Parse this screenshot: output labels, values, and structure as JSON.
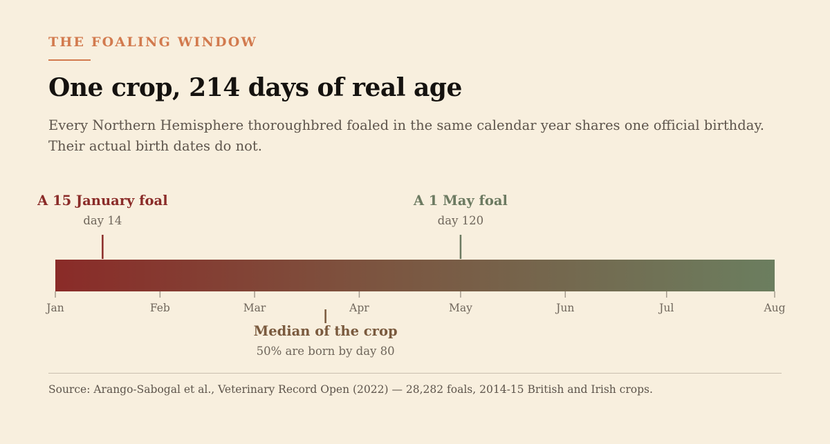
{
  "header": {
    "kicker": "THE FOALING WINDOW",
    "title": "One crop, 214 days of real age",
    "subtitle": "Every Northern Hemisphere thoroughbred foaled in the same calendar year shares one official birthday. Their actual birth dates do not."
  },
  "chart_data": {
    "type": "timeline",
    "axis": {
      "start_day": 0,
      "end_day": 213,
      "ticks": [
        {
          "label": "Jan",
          "day": 0
        },
        {
          "label": "Feb",
          "day": 31
        },
        {
          "label": "Mar",
          "day": 59
        },
        {
          "label": "Apr",
          "day": 90
        },
        {
          "label": "May",
          "day": 120
        },
        {
          "label": "Jun",
          "day": 151
        },
        {
          "label": "Jul",
          "day": 181
        },
        {
          "label": "Aug",
          "day": 213
        }
      ]
    },
    "gradient": {
      "start_color": "#8a2b28",
      "mid_color": "#7c5540",
      "end_color": "#6b7e5f"
    },
    "markers": [
      {
        "id": "jan-foal",
        "day": 14,
        "label": "A 15 January foal",
        "sublabel": "day 14",
        "position": "above",
        "color": "#8a2b28"
      },
      {
        "id": "may-foal",
        "day": 120,
        "label": "A 1 May foal",
        "sublabel": "day 120",
        "position": "above",
        "color": "#6c7a61"
      },
      {
        "id": "median",
        "day": 80,
        "label": "Median of the crop",
        "sublabel": "50% are born by day 80",
        "position": "below",
        "color": "#7a5a3e"
      }
    ]
  },
  "footer": {
    "source": "Source: Arango-Sabogal et al., Veterinary Record Open (2022) — 28,282 foals, 2014-15 British and Irish crops."
  }
}
